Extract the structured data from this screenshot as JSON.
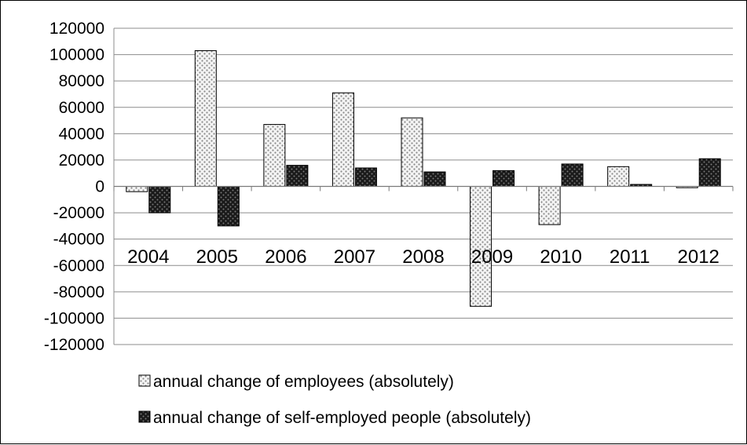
{
  "chart_data": {
    "type": "bar",
    "title": "",
    "xlabel": "",
    "ylabel": "",
    "categories": [
      "2004",
      "2005",
      "2006",
      "2007",
      "2008",
      "2009",
      "2010",
      "2011",
      "2012"
    ],
    "ylim": [
      -120000,
      120000
    ],
    "y_ticks": [
      120000,
      100000,
      80000,
      60000,
      40000,
      20000,
      0,
      -20000,
      -40000,
      -60000,
      -80000,
      -100000,
      -120000
    ],
    "y_tick_labels": [
      "120000",
      "100000",
      "80000",
      "60000",
      "40000",
      "20000",
      "0",
      "-20000",
      "-40000",
      "-60000",
      "-80000",
      "-100000",
      "-120000"
    ],
    "grid": "horizontal",
    "legend_position": "bottom",
    "series": [
      {
        "name": "annual change of employees (absolutely)",
        "pattern": "light-dotted",
        "color": "#f2f2f2",
        "values": [
          -4000,
          103000,
          47000,
          71000,
          52000,
          -91000,
          -29000,
          15000,
          -1000
        ]
      },
      {
        "name": "annual change of self-employed people (absolutely)",
        "pattern": "dark-checker",
        "color": "#1a1a1a",
        "values": [
          -20000,
          -30000,
          16000,
          14000,
          11000,
          12000,
          17000,
          1500,
          21000
        ]
      }
    ]
  }
}
